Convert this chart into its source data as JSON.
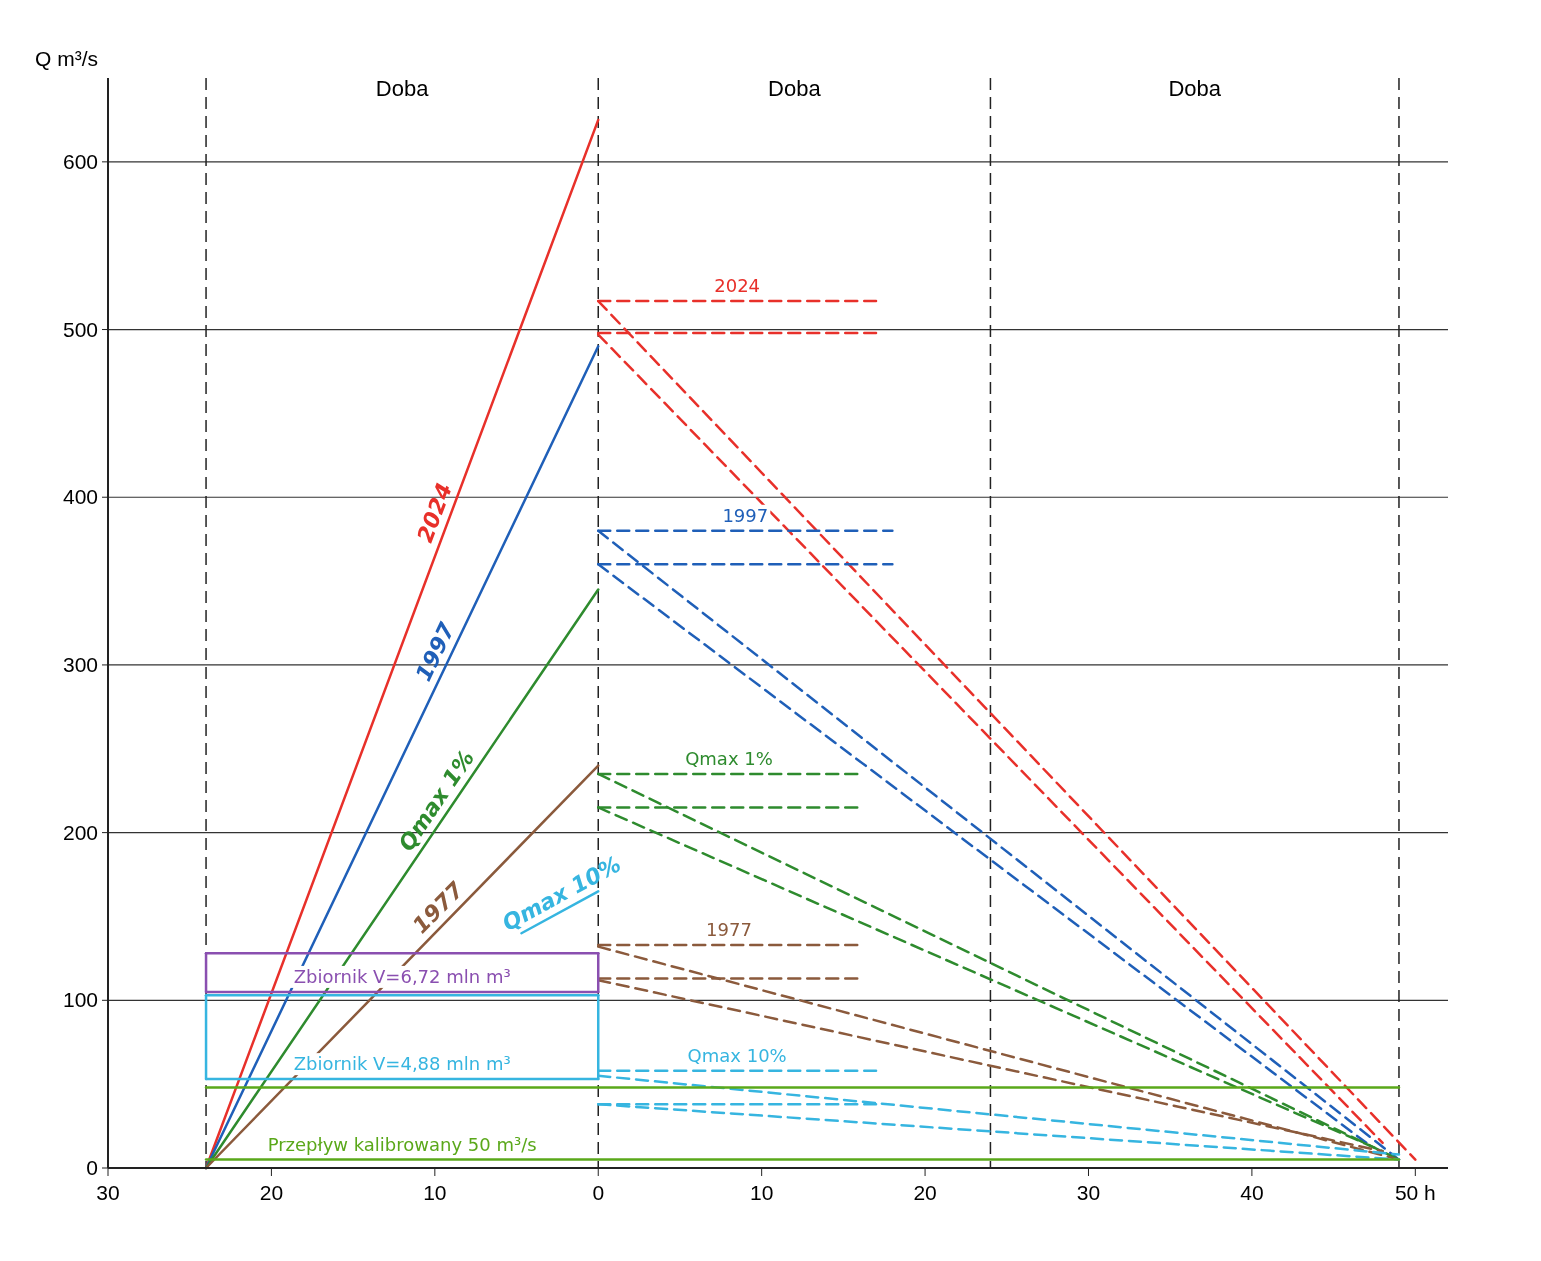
{
  "chart_data": {
    "type": "line",
    "ylabel": "Q m³/s",
    "xlim": [
      -30,
      52
    ],
    "ylim": [
      0,
      650
    ],
    "xticks": [
      {
        "value": -30,
        "label": "30"
      },
      {
        "value": -20,
        "label": "20"
      },
      {
        "value": -10,
        "label": "10"
      },
      0,
      10,
      20,
      30,
      40,
      {
        "value": 50,
        "label": "50 h"
      }
    ],
    "yticks": [
      0,
      100,
      200,
      300,
      400,
      500,
      600
    ],
    "grid": "y",
    "legend": false,
    "series": [
      {
        "name": "2024",
        "color": "#e8302a",
        "x": [
          -24,
          0
        ],
        "values": [
          0,
          625
        ],
        "line_style": "solid"
      },
      {
        "name": "1997",
        "color": "#1f5fb8",
        "x": [
          -24,
          0
        ],
        "values": [
          0,
          490
        ],
        "line_style": "solid"
      },
      {
        "name": "Qmax 1%",
        "color": "#2e8b2e",
        "x": [
          -24,
          0
        ],
        "values": [
          0,
          345
        ],
        "line_style": "solid"
      },
      {
        "name": "1977",
        "color": "#8b5a3c",
        "x": [
          -24,
          0
        ],
        "values": [
          0,
          240
        ],
        "line_style": "solid"
      },
      {
        "name": "Qmax 10%",
        "color": "#36b5e0",
        "x": [
          -4.7,
          0
        ],
        "values": [
          140,
          165
        ],
        "line_style": "solid"
      },
      {
        "color": "#e8302a",
        "x": [
          0,
          50
        ],
        "values": [
          517,
          5
        ],
        "line_style": "dashed"
      },
      {
        "color": "#e8302a",
        "x": [
          0,
          48
        ],
        "values": [
          497,
          15
        ],
        "line_style": "dashed"
      },
      {
        "color": "#1f5fb8",
        "x": [
          0,
          49
        ],
        "values": [
          380,
          5
        ],
        "line_style": "dashed"
      },
      {
        "color": "#1f5fb8",
        "x": [
          0,
          47
        ],
        "values": [
          360,
          15
        ],
        "line_style": "dashed"
      },
      {
        "color": "#2e8b2e",
        "x": [
          0,
          49
        ],
        "values": [
          235,
          5
        ],
        "line_style": "dashed"
      },
      {
        "color": "#2e8b2e",
        "x": [
          0,
          48
        ],
        "values": [
          215,
          10
        ],
        "line_style": "dashed"
      },
      {
        "color": "#8b5a3c",
        "x": [
          0,
          49
        ],
        "values": [
          132,
          5
        ],
        "line_style": "dashed"
      },
      {
        "color": "#8b5a3c",
        "x": [
          0,
          48
        ],
        "values": [
          112,
          10
        ],
        "line_style": "dashed"
      },
      {
        "color": "#36b5e0",
        "x": [
          0,
          49
        ],
        "values": [
          55,
          8
        ],
        "line_style": "dashed"
      },
      {
        "color": "#36b5e0",
        "x": [
          0,
          49
        ],
        "values": [
          38,
          5
        ],
        "line_style": "dashed"
      },
      {
        "name": "2024",
        "color": "#e8302a",
        "x": [
          0,
          17
        ],
        "values": [
          517,
          517
        ],
        "line_style": "dashed"
      },
      {
        "color": "#e8302a",
        "x": [
          0,
          17
        ],
        "values": [
          498,
          498
        ],
        "line_style": "dashed"
      },
      {
        "name": "1997",
        "color": "#1f5fb8",
        "x": [
          0,
          18
        ],
        "values": [
          380,
          380
        ],
        "line_style": "dashed"
      },
      {
        "color": "#1f5fb8",
        "x": [
          0,
          18
        ],
        "values": [
          360,
          360
        ],
        "line_style": "dashed"
      },
      {
        "name": "Qmax 1%",
        "color": "#2e8b2e",
        "x": [
          0,
          16
        ],
        "values": [
          235,
          235
        ],
        "line_style": "dashed"
      },
      {
        "color": "#2e8b2e",
        "x": [
          0,
          16
        ],
        "values": [
          215,
          215
        ],
        "line_style": "dashed"
      },
      {
        "name": "1977",
        "color": "#8b5a3c",
        "x": [
          0,
          16
        ],
        "values": [
          133,
          133
        ],
        "line_style": "dashed"
      },
      {
        "color": "#8b5a3c",
        "x": [
          0,
          16
        ],
        "values": [
          113,
          113
        ],
        "line_style": "dashed"
      },
      {
        "name": "Qmax 10%",
        "color": "#36b5e0",
        "x": [
          0,
          17
        ],
        "values": [
          58,
          58
        ],
        "line_style": "dashed"
      },
      {
        "color": "#36b5e0",
        "x": [
          0,
          17
        ],
        "values": [
          38,
          38
        ],
        "line_style": "dashed"
      },
      {
        "color": "#8a4fb0",
        "x": [
          -24,
          0
        ],
        "values": [
          128,
          128
        ],
        "line_style": "solid"
      },
      {
        "color": "#8a4fb0",
        "x": [
          -24,
          -24
        ],
        "values": [
          105,
          128
        ],
        "line_style": "solid"
      },
      {
        "color": "#8a4fb0",
        "x": [
          0,
          0
        ],
        "values": [
          105,
          128
        ],
        "line_style": "solid"
      },
      {
        "name": "Zbiornik V=6,72 mln m³",
        "color": "#8a4fb0",
        "x": [
          -24,
          0
        ],
        "values": [
          105,
          105
        ],
        "line_style": "solid"
      },
      {
        "color": "#36b5e0",
        "x": [
          -24,
          0
        ],
        "values": [
          103,
          103
        ],
        "line_style": "solid"
      },
      {
        "color": "#36b5e0",
        "x": [
          -24,
          -24
        ],
        "values": [
          53,
          103
        ],
        "line_style": "solid"
      },
      {
        "color": "#36b5e0",
        "x": [
          0,
          0
        ],
        "values": [
          53,
          103
        ],
        "line_style": "solid"
      },
      {
        "name": "Zbiornik V=4,88 mln m³",
        "color": "#36b5e0",
        "x": [
          -24,
          0
        ],
        "values": [
          53,
          53
        ],
        "line_style": "solid"
      },
      {
        "color": "#5aa81a",
        "x": [
          -24,
          49
        ],
        "values": [
          48,
          48
        ],
        "line_style": "solid"
      },
      {
        "name": "Przepływ kalibrowany 50 m³/s",
        "color": "#5aa81a",
        "x": [
          -24,
          49
        ],
        "values": [
          5,
          5
        ],
        "line_style": "solid"
      }
    ],
    "ref_lines": [
      {
        "axis": "x",
        "value": -24,
        "line_style": "dashed"
      },
      {
        "axis": "x",
        "value": 0,
        "line_style": "dashed"
      },
      {
        "axis": "x",
        "value": 24,
        "line_style": "dashed"
      },
      {
        "axis": "x",
        "value": 49,
        "line_style": "dashed"
      }
    ],
    "annotations": [
      "Doba",
      "Doba",
      "Doba"
    ]
  }
}
